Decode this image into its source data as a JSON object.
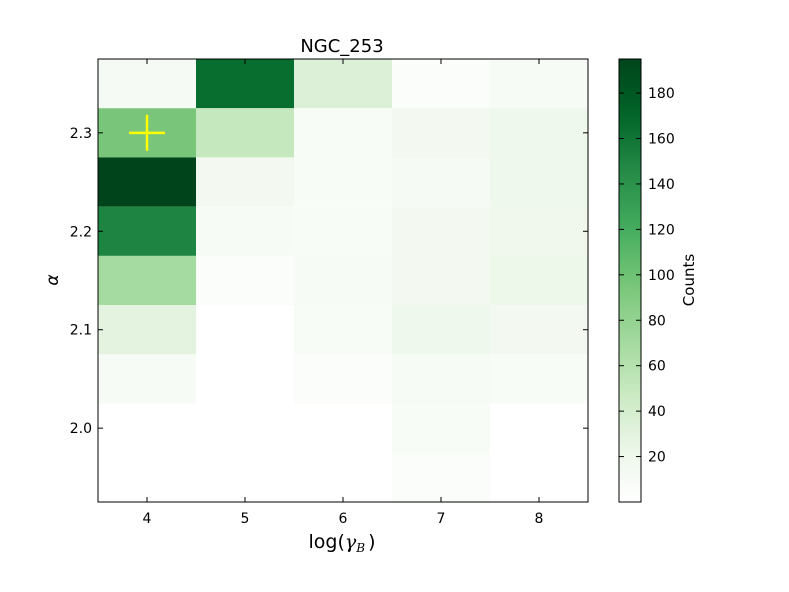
{
  "chart_data": {
    "type": "heatmap",
    "title": "NGC_253",
    "xlabel": "log(γ_B )",
    "xlabel_main": "log(",
    "xlabel_sym": "γ",
    "xlabel_sub": "B",
    "xlabel_close": ")",
    "ylabel": "α",
    "x_bins": [
      3.5,
      4.5,
      5.5,
      6.5,
      7.5,
      8.5
    ],
    "y_bins": [
      1.925,
      1.975,
      2.025,
      2.075,
      2.125,
      2.175,
      2.225,
      2.275,
      2.325,
      2.375
    ],
    "xlim": [
      3.5,
      8.5
    ],
    "ylim": [
      1.925,
      2.375
    ],
    "xticks": [
      4,
      5,
      6,
      7,
      8
    ],
    "xtick_labels": [
      "4",
      "5",
      "6",
      "7",
      "8"
    ],
    "yticks": [
      2.0,
      2.1,
      2.2,
      2.3
    ],
    "ytick_labels": [
      "2.0",
      "2.1",
      "2.2",
      "2.3"
    ],
    "counts_rows_top_to_bottom": [
      [
        12,
        165,
        35,
        5,
        10
      ],
      [
        95,
        50,
        8,
        15,
        20
      ],
      [
        195,
        15,
        8,
        12,
        20
      ],
      [
        150,
        10,
        8,
        15,
        18
      ],
      [
        70,
        5,
        10,
        15,
        22
      ],
      [
        30,
        0,
        8,
        20,
        15
      ],
      [
        10,
        0,
        5,
        10,
        8
      ],
      [
        0,
        0,
        0,
        8,
        0
      ],
      [
        0,
        0,
        0,
        6,
        0
      ]
    ],
    "marker": {
      "x": 4,
      "y": 2.3,
      "symbol": "+",
      "color": "#ffff00"
    },
    "colorbar": {
      "label": "Counts",
      "min": 0,
      "max": 195,
      "ticks": [
        20,
        40,
        60,
        80,
        100,
        120,
        140,
        160,
        180
      ],
      "tick_labels": [
        "20",
        "40",
        "60",
        "80",
        "100",
        "120",
        "140",
        "160",
        "180"
      ],
      "cmap": "Greens"
    },
    "grid": false
  }
}
